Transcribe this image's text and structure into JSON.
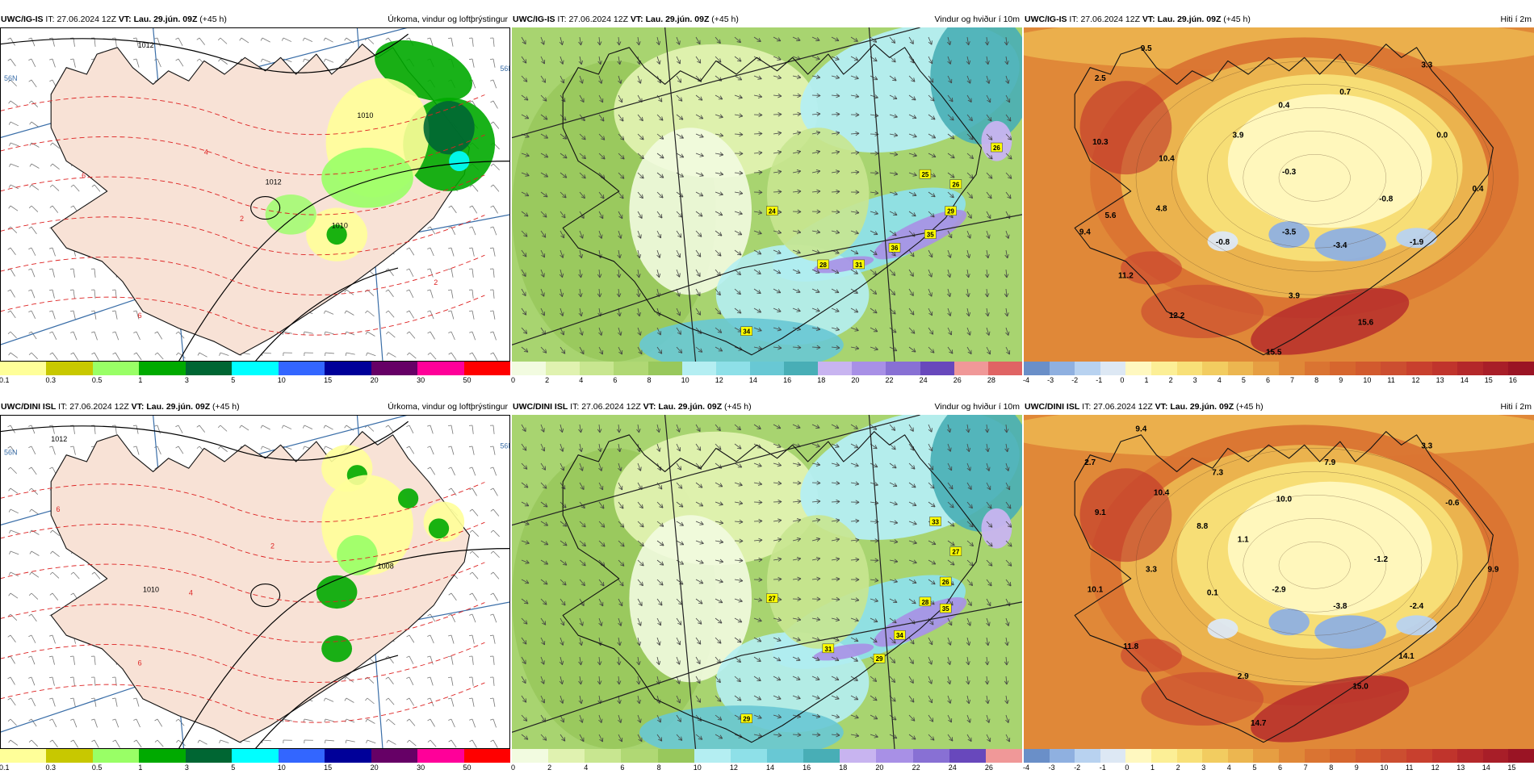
{
  "panels": [
    {
      "key": "p1",
      "type": "precip",
      "model": "UWC/IG-IS",
      "it_label": "IT:",
      "it": "27.06.2024 12Z",
      "vt_label": "VT:",
      "vt": "Lau. 29.jún. 09Z",
      "lead": "(+45 h)",
      "product": "Úrkoma, vindur og loftþrýstingur",
      "colorbar": {
        "ticks": [
          "0.1",
          "0.3",
          "0.5",
          "1",
          "3",
          "5",
          "10",
          "15",
          "20",
          "30",
          "50"
        ],
        "colors": [
          "#ffff99",
          "#c8c800",
          "#99ff66",
          "#00aa00",
          "#006633",
          "#00ffff",
          "#3366ff",
          "#000099",
          "#660066",
          "#ff0099",
          "#ff0000"
        ]
      },
      "labels": [
        {
          "text": "1012",
          "ux": 0.27,
          "uy": 0.06,
          "kind": "iso"
        },
        {
          "text": "1010",
          "ux": 0.7,
          "uy": 0.27,
          "kind": "iso"
        },
        {
          "text": "1012",
          "ux": 0.52,
          "uy": 0.47,
          "kind": "iso"
        },
        {
          "text": "1010",
          "ux": 0.65,
          "uy": 0.6,
          "kind": "iso"
        },
        {
          "text": "56N",
          "ux": 0.008,
          "uy": 0.16,
          "kind": "grid"
        },
        {
          "text": "56N",
          "ux": 0.98,
          "uy": 0.13,
          "kind": "grid"
        },
        {
          "text": "6",
          "ux": 0.16,
          "uy": 0.45,
          "kind": "temp"
        },
        {
          "text": "6",
          "ux": 0.27,
          "uy": 0.87,
          "kind": "temp"
        },
        {
          "text": "2",
          "ux": 0.47,
          "uy": 0.58,
          "kind": "temp"
        },
        {
          "text": "2",
          "ux": 0.85,
          "uy": 0.77,
          "kind": "temp"
        },
        {
          "text": "4",
          "ux": 0.4,
          "uy": 0.38,
          "kind": "temp"
        }
      ]
    },
    {
      "key": "p2",
      "type": "wind",
      "model": "UWC/IG-IS",
      "it_label": "IT:",
      "it": "27.06.2024 12Z",
      "vt_label": "VT:",
      "vt": "Lau. 29.jún. 09Z",
      "lead": "(+45 h)",
      "product": "Vindur og hviður í 10m",
      "colorbar": {
        "ticks": [
          "0",
          "2",
          "4",
          "6",
          "8",
          "10",
          "12",
          "14",
          "16",
          "18",
          "20",
          "22",
          "24",
          "26",
          "28"
        ],
        "colors": [
          "#f2fbe0",
          "#e0f2b0",
          "#c8e690",
          "#b0d874",
          "#98c85c",
          "#b4eef2",
          "#8ee0e8",
          "#68c8d4",
          "#48aeb6",
          "#c8b4f0",
          "#a890e6",
          "#8870d4",
          "#6848bc",
          "#f09898",
          "#e06464"
        ]
      },
      "labels": [
        {
          "text": "26",
          "ux": 0.95,
          "uy": 0.36
        },
        {
          "text": "25",
          "ux": 0.81,
          "uy": 0.44
        },
        {
          "text": "26",
          "ux": 0.87,
          "uy": 0.47
        },
        {
          "text": "24",
          "ux": 0.51,
          "uy": 0.55
        },
        {
          "text": "29",
          "ux": 0.86,
          "uy": 0.55
        },
        {
          "text": "35",
          "ux": 0.82,
          "uy": 0.62
        },
        {
          "text": "36",
          "ux": 0.75,
          "uy": 0.66
        },
        {
          "text": "28",
          "ux": 0.61,
          "uy": 0.71
        },
        {
          "text": "31",
          "ux": 0.68,
          "uy": 0.71
        },
        {
          "text": "34",
          "ux": 0.46,
          "uy": 0.91
        }
      ]
    },
    {
      "key": "p3",
      "type": "temp",
      "model": "UWC/IG-IS",
      "it_label": "IT:",
      "it": "27.06.2024 12Z",
      "vt_label": "VT:",
      "vt": "Lau. 29.jún. 09Z",
      "lead": "(+45 h)",
      "product": "Hiti í 2m",
      "colorbar": {
        "ticks": [
          "-4",
          "-3",
          "-2",
          "-1",
          "0",
          "1",
          "2",
          "3",
          "4",
          "5",
          "6",
          "7",
          "8",
          "9",
          "10",
          "11",
          "12",
          "13",
          "14",
          "15",
          "16"
        ],
        "colors": [
          "#6a8fc8",
          "#8fb0e0",
          "#b8d2f0",
          "#dde8f4",
          "#fff8c0",
          "#fcef96",
          "#f8e078",
          "#f2cc60",
          "#ecb650",
          "#e69e42",
          "#e08838",
          "#da7432",
          "#d6662e",
          "#d25a2e",
          "#cc4e30",
          "#c8402e",
          "#c0342c",
          "#b4282a",
          "#a81e28",
          "#9a1424"
        ]
      },
      "labels": [
        {
          "text": "9.5",
          "ux": 0.24,
          "uy": 0.07
        },
        {
          "text": "3.3",
          "ux": 0.79,
          "uy": 0.12
        },
        {
          "text": "2.5",
          "ux": 0.15,
          "uy": 0.16
        },
        {
          "text": "0.7",
          "ux": 0.63,
          "uy": 0.2
        },
        {
          "text": "0.4",
          "ux": 0.51,
          "uy": 0.24
        },
        {
          "text": "3.9",
          "ux": 0.42,
          "uy": 0.33
        },
        {
          "text": "10.3",
          "ux": 0.15,
          "uy": 0.35
        },
        {
          "text": "0.0",
          "ux": 0.82,
          "uy": 0.33
        },
        {
          "text": "10.4",
          "ux": 0.28,
          "uy": 0.4
        },
        {
          "text": "-0.3",
          "ux": 0.52,
          "uy": 0.44
        },
        {
          "text": "0.4",
          "ux": 0.89,
          "uy": 0.49
        },
        {
          "text": "4.8",
          "ux": 0.27,
          "uy": 0.55
        },
        {
          "text": "-0.8",
          "ux": 0.71,
          "uy": 0.52
        },
        {
          "text": "5.6",
          "ux": 0.17,
          "uy": 0.57
        },
        {
          "text": "9.4",
          "ux": 0.12,
          "uy": 0.62
        },
        {
          "text": "-3.5",
          "ux": 0.52,
          "uy": 0.62
        },
        {
          "text": "-0.8",
          "ux": 0.39,
          "uy": 0.65
        },
        {
          "text": "-3.4",
          "ux": 0.62,
          "uy": 0.66
        },
        {
          "text": "-1.9",
          "ux": 0.77,
          "uy": 0.65
        },
        {
          "text": "11.2",
          "ux": 0.2,
          "uy": 0.75
        },
        {
          "text": "3.9",
          "ux": 0.53,
          "uy": 0.81
        },
        {
          "text": "12.2",
          "ux": 0.3,
          "uy": 0.87
        },
        {
          "text": "15.6",
          "ux": 0.67,
          "uy": 0.89
        },
        {
          "text": "15.5",
          "ux": 0.49,
          "uy": 0.98
        }
      ]
    },
    {
      "key": "p4",
      "type": "precip",
      "model": "UWC/DINI ISL",
      "it_label": "IT:",
      "it": "27.06.2024 12Z",
      "vt_label": "VT:",
      "vt": "Lau. 29.jún. 09Z",
      "lead": "(+45 h)",
      "product": "Úrkoma, vindur og loftþrýstingur",
      "colorbar": {
        "ticks": [
          "0.1",
          "0.3",
          "0.5",
          "1",
          "3",
          "5",
          "10",
          "15",
          "20",
          "30",
          "50"
        ],
        "colors": [
          "#ffff99",
          "#c8c800",
          "#99ff66",
          "#00aa00",
          "#006633",
          "#00ffff",
          "#3366ff",
          "#000099",
          "#660066",
          "#ff0099",
          "#ff0000"
        ]
      },
      "labels": [
        {
          "text": "1012",
          "ux": 0.1,
          "uy": 0.08,
          "kind": "iso"
        },
        {
          "text": "1010",
          "ux": 0.28,
          "uy": 0.53,
          "kind": "iso"
        },
        {
          "text": "1008",
          "ux": 0.74,
          "uy": 0.46,
          "kind": "iso"
        },
        {
          "text": "56N",
          "ux": 0.008,
          "uy": 0.12,
          "kind": "grid"
        },
        {
          "text": "56N",
          "ux": 0.98,
          "uy": 0.1,
          "kind": "grid"
        },
        {
          "text": "6",
          "ux": 0.11,
          "uy": 0.29,
          "kind": "temp"
        },
        {
          "text": "6",
          "ux": 0.27,
          "uy": 0.75,
          "kind": "temp"
        },
        {
          "text": "2",
          "ux": 0.53,
          "uy": 0.4,
          "kind": "temp"
        },
        {
          "text": "4",
          "ux": 0.37,
          "uy": 0.54,
          "kind": "temp"
        }
      ]
    },
    {
      "key": "p5",
      "type": "wind",
      "model": "UWC/DINI ISL",
      "it_label": "IT:",
      "it": "27.06.2024 12Z",
      "vt_label": "VT:",
      "vt": "Lau. 29.jún. 09Z",
      "lead": "(+45 h)",
      "product": "Vindur og hviður í 10m",
      "colorbar": {
        "ticks": [
          "0",
          "2",
          "4",
          "6",
          "8",
          "10",
          "12",
          "14",
          "16",
          "18",
          "20",
          "22",
          "24",
          "26"
        ],
        "colors": [
          "#f2fbe0",
          "#e0f2b0",
          "#c8e690",
          "#b0d874",
          "#98c85c",
          "#b4eef2",
          "#8ee0e8",
          "#68c8d4",
          "#48aeb6",
          "#c8b4f0",
          "#a890e6",
          "#8870d4",
          "#6848bc",
          "#f09898"
        ]
      },
      "labels": [
        {
          "text": "33",
          "ux": 0.83,
          "uy": 0.32
        },
        {
          "text": "27",
          "ux": 0.87,
          "uy": 0.41
        },
        {
          "text": "26",
          "ux": 0.85,
          "uy": 0.5
        },
        {
          "text": "27",
          "ux": 0.51,
          "uy": 0.55
        },
        {
          "text": "35",
          "ux": 0.85,
          "uy": 0.58
        },
        {
          "text": "28",
          "ux": 0.81,
          "uy": 0.56
        },
        {
          "text": "34",
          "ux": 0.76,
          "uy": 0.66
        },
        {
          "text": "31",
          "ux": 0.62,
          "uy": 0.7
        },
        {
          "text": "29",
          "ux": 0.72,
          "uy": 0.73
        },
        {
          "text": "29",
          "ux": 0.46,
          "uy": 0.91
        }
      ]
    },
    {
      "key": "p6",
      "type": "temp",
      "model": "UWC/DINI ISL",
      "it_label": "IT:",
      "it": "27.06.2024 12Z",
      "vt_label": "VT:",
      "vt": "Lau. 29.jún. 09Z",
      "lead": "(+45 h)",
      "product": "Hiti í 2m",
      "colorbar": {
        "ticks": [
          "-4",
          "-3",
          "-2",
          "-1",
          "0",
          "1",
          "2",
          "3",
          "4",
          "5",
          "6",
          "7",
          "8",
          "9",
          "10",
          "11",
          "12",
          "13",
          "14",
          "15"
        ],
        "colors": [
          "#6a8fc8",
          "#8fb0e0",
          "#b8d2f0",
          "#dde8f4",
          "#fff8c0",
          "#fcef96",
          "#f8e078",
          "#f2cc60",
          "#ecb650",
          "#e69e42",
          "#e08838",
          "#da7432",
          "#d6662e",
          "#d25a2e",
          "#cc4e30",
          "#c8402e",
          "#c0342c",
          "#b4282a",
          "#a81e28",
          "#9a1424"
        ]
      },
      "labels": [
        {
          "text": "9.4",
          "ux": 0.23,
          "uy": 0.05
        },
        {
          "text": "3.3",
          "ux": 0.79,
          "uy": 0.1
        },
        {
          "text": "2.7",
          "ux": 0.13,
          "uy": 0.15
        },
        {
          "text": "7.3",
          "ux": 0.38,
          "uy": 0.18
        },
        {
          "text": "7.9",
          "ux": 0.6,
          "uy": 0.15
        },
        {
          "text": "10.4",
          "ux": 0.27,
          "uy": 0.24
        },
        {
          "text": "10.0",
          "ux": 0.51,
          "uy": 0.26
        },
        {
          "text": "-0.6",
          "ux": 0.84,
          "uy": 0.27
        },
        {
          "text": "9.1",
          "ux": 0.15,
          "uy": 0.3
        },
        {
          "text": "8.8",
          "ux": 0.35,
          "uy": 0.34
        },
        {
          "text": "1.1",
          "ux": 0.43,
          "uy": 0.38
        },
        {
          "text": "-1.2",
          "ux": 0.7,
          "uy": 0.44
        },
        {
          "text": "9.9",
          "ux": 0.92,
          "uy": 0.47
        },
        {
          "text": "3.3",
          "ux": 0.25,
          "uy": 0.47
        },
        {
          "text": "10.1",
          "ux": 0.14,
          "uy": 0.53
        },
        {
          "text": "0.1",
          "ux": 0.37,
          "uy": 0.54
        },
        {
          "text": "-2.9",
          "ux": 0.5,
          "uy": 0.53
        },
        {
          "text": "-3.8",
          "ux": 0.62,
          "uy": 0.58
        },
        {
          "text": "-2.4",
          "ux": 0.77,
          "uy": 0.58
        },
        {
          "text": "11.8",
          "ux": 0.21,
          "uy": 0.7
        },
        {
          "text": "14.1",
          "ux": 0.75,
          "uy": 0.73
        },
        {
          "text": "2.9",
          "ux": 0.43,
          "uy": 0.79
        },
        {
          "text": "15.0",
          "ux": 0.66,
          "uy": 0.82
        },
        {
          "text": "14.7",
          "ux": 0.46,
          "uy": 0.93
        }
      ]
    }
  ]
}
